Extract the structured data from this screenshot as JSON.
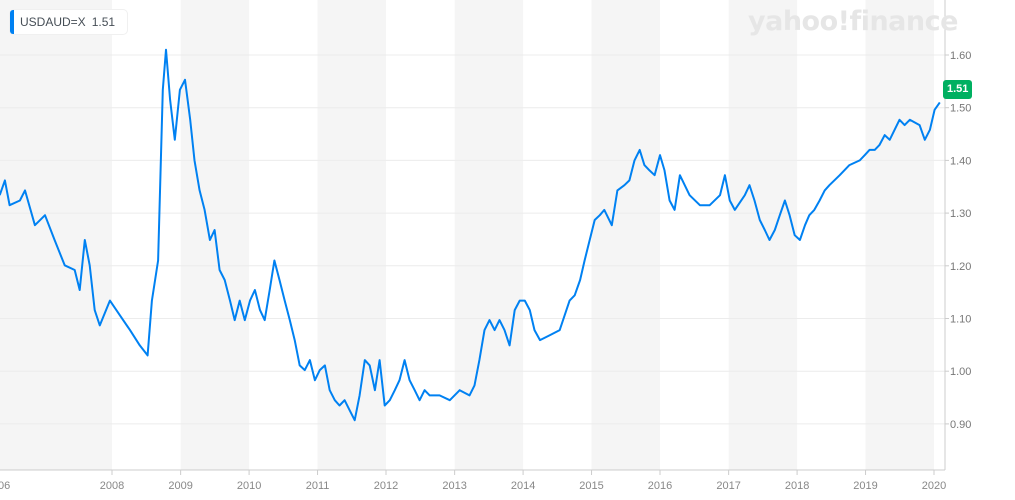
{
  "legend": {
    "symbol": "USDAUD=X",
    "value": "1.51"
  },
  "price_badge": "1.51",
  "watermark": "yahoo!finance",
  "colors": {
    "line": "#0081f2",
    "badge": "#00b061",
    "band": "#f5f5f5"
  },
  "chart_data": {
    "type": "line",
    "title": "",
    "series": [
      {
        "name": "USDAUD=X",
        "points": [
          [
            "2006-05-12",
            1.334
          ],
          [
            "2006-06-09",
            1.362
          ],
          [
            "2006-07-04",
            1.315
          ],
          [
            "2006-08-28",
            1.324
          ],
          [
            "2006-09-24",
            1.343
          ],
          [
            "2006-11-16",
            1.277
          ],
          [
            "2007-01-09",
            1.296
          ],
          [
            "2007-03-01",
            1.249
          ],
          [
            "2007-04-24",
            1.201
          ],
          [
            "2007-06-16",
            1.192
          ],
          [
            "2007-07-13",
            1.154
          ],
          [
            "2007-08-09",
            1.249
          ],
          [
            "2007-09-04",
            1.201
          ],
          [
            "2007-10-01",
            1.116
          ],
          [
            "2007-10-28",
            1.087
          ],
          [
            "2007-12-21",
            1.134
          ],
          [
            "2008-02-12",
            1.106
          ],
          [
            "2008-04-06",
            1.078
          ],
          [
            "2008-05-28",
            1.049
          ],
          [
            "2008-07-09",
            1.03
          ],
          [
            "2008-08-01",
            1.134
          ],
          [
            "2008-09-03",
            1.21
          ],
          [
            "2008-09-28",
            1.534
          ],
          [
            "2008-10-15",
            1.61
          ],
          [
            "2008-11-06",
            1.515
          ],
          [
            "2008-12-01",
            1.439
          ],
          [
            "2008-12-28",
            1.534
          ],
          [
            "2009-01-24",
            1.553
          ],
          [
            "2009-02-21",
            1.477
          ],
          [
            "2009-03-16",
            1.4
          ],
          [
            "2009-04-12",
            1.343
          ],
          [
            "2009-05-09",
            1.306
          ],
          [
            "2009-06-06",
            1.249
          ],
          [
            "2009-07-01",
            1.268
          ],
          [
            "2009-07-28",
            1.192
          ],
          [
            "2009-08-24",
            1.173
          ],
          [
            "2009-09-21",
            1.134
          ],
          [
            "2009-10-16",
            1.097
          ],
          [
            "2009-11-12",
            1.134
          ],
          [
            "2009-12-09",
            1.097
          ],
          [
            "2010-01-06",
            1.134
          ],
          [
            "2010-02-01",
            1.154
          ],
          [
            "2010-02-28",
            1.116
          ],
          [
            "2010-03-25",
            1.097
          ],
          [
            "2010-04-21",
            1.154
          ],
          [
            "2010-05-16",
            1.21
          ],
          [
            "2010-06-12",
            1.173
          ],
          [
            "2010-07-10",
            1.134
          ],
          [
            "2010-08-06",
            1.097
          ],
          [
            "2010-09-01",
            1.059
          ],
          [
            "2010-09-28",
            1.011
          ],
          [
            "2010-10-25",
            1.002
          ],
          [
            "2010-11-21",
            1.021
          ],
          [
            "2010-12-18",
            0.983
          ],
          [
            "2011-01-13",
            1.002
          ],
          [
            "2011-02-09",
            1.011
          ],
          [
            "2011-03-07",
            0.964
          ],
          [
            "2011-04-03",
            0.945
          ],
          [
            "2011-04-28",
            0.935
          ],
          [
            "2011-05-25",
            0.945
          ],
          [
            "2011-06-21",
            0.926
          ],
          [
            "2011-07-18",
            0.907
          ],
          [
            "2011-08-13",
            0.954
          ],
          [
            "2011-09-10",
            1.021
          ],
          [
            "2011-10-06",
            1.011
          ],
          [
            "2011-11-03",
            0.964
          ],
          [
            "2011-11-28",
            1.021
          ],
          [
            "2011-12-25",
            0.935
          ],
          [
            "2012-01-21",
            0.945
          ],
          [
            "2012-02-17",
            0.964
          ],
          [
            "2012-03-13",
            0.983
          ],
          [
            "2012-04-09",
            1.021
          ],
          [
            "2012-05-06",
            0.983
          ],
          [
            "2012-06-02",
            0.964
          ],
          [
            "2012-06-28",
            0.945
          ],
          [
            "2012-07-25",
            0.964
          ],
          [
            "2012-08-21",
            0.954
          ],
          [
            "2012-10-13",
            0.954
          ],
          [
            "2012-12-06",
            0.945
          ],
          [
            "2013-01-28",
            0.964
          ],
          [
            "2013-03-21",
            0.954
          ],
          [
            "2013-04-17",
            0.973
          ],
          [
            "2013-05-13",
            1.021
          ],
          [
            "2013-06-09",
            1.078
          ],
          [
            "2013-07-06",
            1.097
          ],
          [
            "2013-08-02",
            1.078
          ],
          [
            "2013-08-28",
            1.097
          ],
          [
            "2013-09-24",
            1.078
          ],
          [
            "2013-10-21",
            1.049
          ],
          [
            "2013-11-17",
            1.116
          ],
          [
            "2013-12-14",
            1.134
          ],
          [
            "2014-01-10",
            1.134
          ],
          [
            "2014-02-06",
            1.116
          ],
          [
            "2014-03-03",
            1.078
          ],
          [
            "2014-04-01",
            1.059
          ],
          [
            "2014-05-22",
            1.068
          ],
          [
            "2014-07-15",
            1.078
          ],
          [
            "2014-09-06",
            1.134
          ],
          [
            "2014-10-03",
            1.144
          ],
          [
            "2014-11-01",
            1.173
          ],
          [
            "2014-11-25",
            1.21
          ],
          [
            "2014-12-22",
            1.249
          ],
          [
            "2015-01-18",
            1.287
          ],
          [
            "2015-02-14",
            1.296
          ],
          [
            "2015-03-10",
            1.306
          ],
          [
            "2015-04-19",
            1.277
          ],
          [
            "2015-05-19",
            1.343
          ],
          [
            "2015-06-25",
            1.353
          ],
          [
            "2015-07-22",
            1.362
          ],
          [
            "2015-08-18",
            1.4
          ],
          [
            "2015-09-15",
            1.42
          ],
          [
            "2015-10-10",
            1.391
          ],
          [
            "2015-11-06",
            1.381
          ],
          [
            "2015-12-03",
            1.372
          ],
          [
            "2016-01-01",
            1.41
          ],
          [
            "2016-01-25",
            1.381
          ],
          [
            "2016-02-21",
            1.324
          ],
          [
            "2016-03-19",
            1.306
          ],
          [
            "2016-04-16",
            1.372
          ],
          [
            "2016-06-07",
            1.334
          ],
          [
            "2016-08-01",
            1.315
          ],
          [
            "2016-09-22",
            1.315
          ],
          [
            "2016-11-16",
            1.334
          ],
          [
            "2016-12-12",
            1.372
          ],
          [
            "2017-01-07",
            1.324
          ],
          [
            "2017-02-03",
            1.306
          ],
          [
            "2017-03-28",
            1.334
          ],
          [
            "2017-04-22",
            1.353
          ],
          [
            "2017-05-19",
            1.324
          ],
          [
            "2017-06-16",
            1.287
          ],
          [
            "2017-07-13",
            1.268
          ],
          [
            "2017-08-07",
            1.249
          ],
          [
            "2017-09-04",
            1.268
          ],
          [
            "2017-10-01",
            1.296
          ],
          [
            "2017-10-28",
            1.324
          ],
          [
            "2017-11-22",
            1.296
          ],
          [
            "2017-12-19",
            1.258
          ],
          [
            "2018-01-16",
            1.249
          ],
          [
            "2018-02-12",
            1.277
          ],
          [
            "2018-03-07",
            1.296
          ],
          [
            "2018-04-03",
            1.306
          ],
          [
            "2018-05-01",
            1.324
          ],
          [
            "2018-05-28",
            1.343
          ],
          [
            "2018-06-22",
            1.353
          ],
          [
            "2018-08-16",
            1.372
          ],
          [
            "2018-10-07",
            1.391
          ],
          [
            "2018-12-01",
            1.4
          ],
          [
            "2018-12-28",
            1.41
          ],
          [
            "2019-01-22",
            1.42
          ],
          [
            "2019-02-19",
            1.42
          ],
          [
            "2019-03-16",
            1.429
          ],
          [
            "2019-04-13",
            1.448
          ],
          [
            "2019-05-10",
            1.439
          ],
          [
            "2019-07-01",
            1.477
          ],
          [
            "2019-07-28",
            1.467
          ],
          [
            "2019-08-25",
            1.477
          ],
          [
            "2019-10-16",
            1.467
          ],
          [
            "2019-11-13",
            1.439
          ],
          [
            "2019-12-10",
            1.458
          ],
          [
            "2020-01-04",
            1.496
          ],
          [
            "2020-02-01",
            1.51
          ]
        ]
      }
    ],
    "x_ticks": [
      "06",
      "2008",
      "2009",
      "2010",
      "2011",
      "2012",
      "2013",
      "2014",
      "2015",
      "2016",
      "2017",
      "2018",
      "2019",
      "2020"
    ],
    "y_ticks": [
      "0.90",
      "1.00",
      "1.10",
      "1.20",
      "1.30",
      "1.40",
      "1.50",
      "1.60"
    ],
    "ylim": [
      0.83,
      1.7
    ],
    "y_axis_side": "right",
    "grid": true,
    "alternating_year_bands": true
  }
}
